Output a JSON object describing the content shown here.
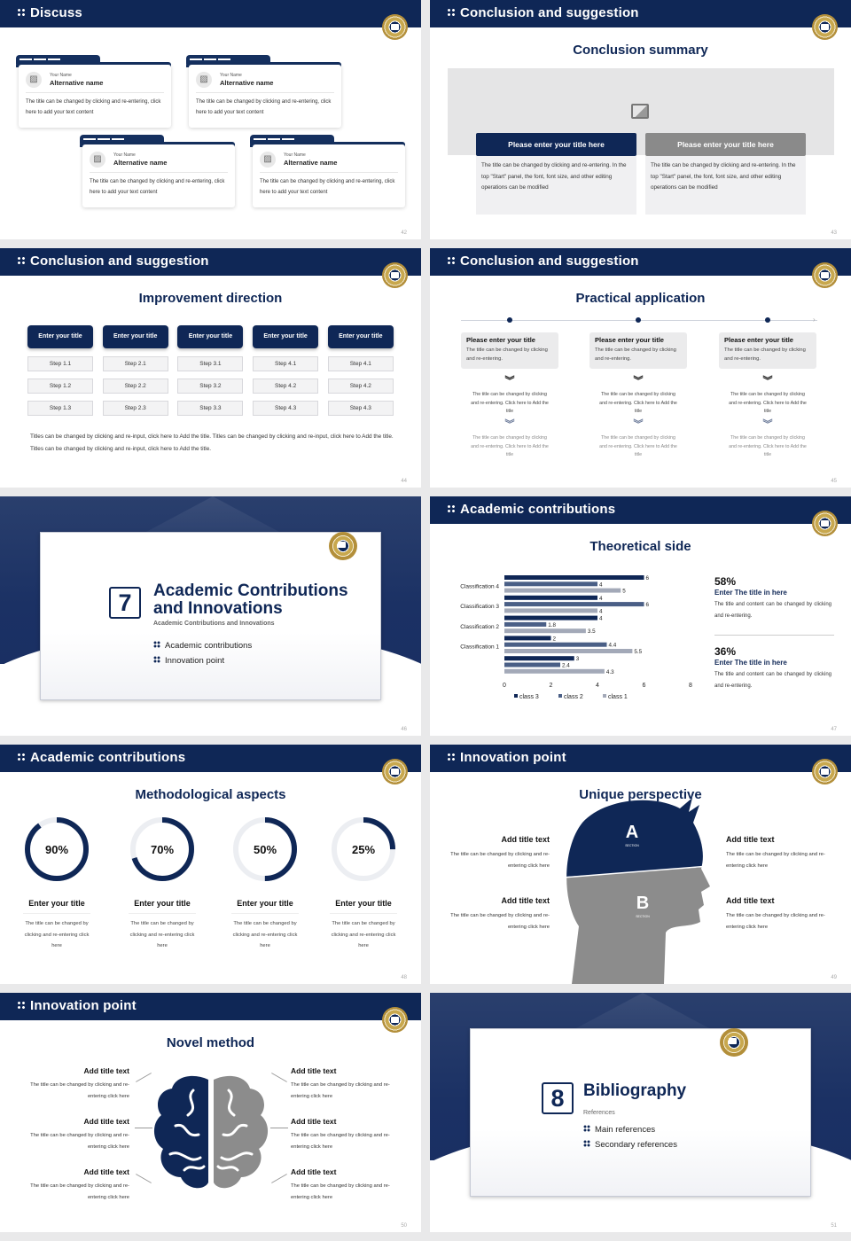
{
  "colors": {
    "navy": "#0f2756",
    "gray": "#8a8a8a",
    "light": "#f0f0f2"
  },
  "s42": {
    "title": "Discuss",
    "page": "42",
    "cards": [
      {
        "label": "Your Name",
        "name": "Alternative name",
        "text": "The title can be changed by clicking and re-entering, click here to add your text content"
      },
      {
        "label": "Your Name",
        "name": "Alternative name",
        "text": "The title can be changed by clicking and re-entering, click here to add your text content"
      },
      {
        "label": "Your Name",
        "name": "Alternative name",
        "text": "The title can be changed by clicking and re-entering, click here to add your text content"
      },
      {
        "label": "Your Name",
        "name": "Alternative name",
        "text": "The title can be changed by clicking and re-entering, click here to add your text content"
      }
    ]
  },
  "s43": {
    "title": "Conclusion and suggestion",
    "heading": "Conclusion summary",
    "page": "43",
    "icon": "image-add-icon",
    "panels": [
      {
        "title": "Please enter your title here",
        "text": "The title can be changed by clicking and re-entering. In the top \"Start\" panel, the font, font size, and other editing operations can be modified"
      },
      {
        "title": "Please enter your title here",
        "text": "The title can be changed by clicking and re-entering. In the top \"Start\" panel, the font, font size, and other editing operations can be modified"
      }
    ]
  },
  "s44": {
    "title": "Conclusion and suggestion",
    "heading": "Improvement direction",
    "page": "44",
    "columns": [
      {
        "title": "Enter your title",
        "steps": [
          "Step 1.1",
          "Step 1.2",
          "Step 1.3"
        ]
      },
      {
        "title": "Enter your title",
        "steps": [
          "Step 2.1",
          "Step 2.2",
          "Step 2.3"
        ]
      },
      {
        "title": "Enter your title",
        "steps": [
          "Step 3.1",
          "Step 3.2",
          "Step 3.3"
        ]
      },
      {
        "title": "Enter your title",
        "steps": [
          "Step 4.1",
          "Step 4.2",
          "Step 4.3"
        ]
      },
      {
        "title": "Enter your title",
        "steps": [
          "Step 4.1",
          "Step 4.2",
          "Step 4.3"
        ]
      }
    ],
    "text": "Titles can be changed by clicking and re-input, click here to Add the title. Titles can be changed by clicking and re-input, click here to Add the title. Titles can be changed by clicking and re-input, click here to Add the title."
  },
  "s45": {
    "title": "Conclusion and suggestion",
    "heading": "Practical application",
    "page": "45",
    "items": [
      {
        "title": "Please enter your title",
        "desc": "The title can be changed by clicking and re-entering.",
        "step1": "The title can be changed by clicking and re-entering. Click here to Add the title",
        "step2": "The title can be changed by clicking and re-entering. Click here to Add the title"
      },
      {
        "title": "Please enter your title",
        "desc": "The title can be changed by clicking and re-entering.",
        "step1": "The title can be changed by clicking and re-entering. Click here to Add the title",
        "step2": "The title can be changed by clicking and re-entering. Click here to Add the title"
      },
      {
        "title": "Please enter your title",
        "desc": "The title can be changed by clicking and re-entering.",
        "step1": "The title can be changed by clicking and re-entering. Click here to Add the title",
        "step2": "The title can be changed by clicking and re-entering. Click here to Add the title"
      }
    ]
  },
  "s46": {
    "number": "7",
    "title": "Academic Contributions and Innovations",
    "subtitle": "Academic Contributions and Innovations",
    "items": [
      "Academic contributions",
      "Innovation point"
    ],
    "page": "46"
  },
  "s47": {
    "title": "Academic contributions",
    "heading": "Theoretical side",
    "page": "47",
    "stats": [
      {
        "value": "58%",
        "title": "Enter The title in here",
        "text": "The title and content can be changed by clicking and re-entering."
      },
      {
        "value": "36%",
        "title": "Enter The title in here",
        "text": "The title and content can be changed by clicking and re-entering."
      }
    ]
  },
  "chart_data": {
    "type": "bar",
    "orientation": "horizontal",
    "categories": [
      "Classification 4",
      "Classification 3",
      "Classification 2",
      "Classification 1",
      ""
    ],
    "series": [
      {
        "name": "class 3",
        "color": "#0f2756",
        "values": [
          6,
          4,
          4,
          2,
          3
        ]
      },
      {
        "name": "class 2",
        "color": "#4a5f86",
        "values": [
          4,
          6,
          1.8,
          4.4,
          2.4
        ]
      },
      {
        "name": "class 1",
        "color": "#a3a9b8",
        "values": [
          5,
          4,
          3.5,
          5.5,
          4.3
        ]
      }
    ],
    "xlim": [
      0,
      8
    ],
    "xticks": [
      "0",
      "2",
      "4",
      "6",
      "8"
    ],
    "legend": "bottom",
    "grid": false
  },
  "s48": {
    "title": "Academic contributions",
    "heading": "Methodological aspects",
    "page": "48",
    "items": [
      {
        "percent": 90,
        "label": "90%",
        "title": "Enter your title",
        "text": "The title can be changed by clicking and re-entering click here"
      },
      {
        "percent": 70,
        "label": "70%",
        "title": "Enter your title",
        "text": "The title can be changed by clicking and re-entering click here"
      },
      {
        "percent": 50,
        "label": "50%",
        "title": "Enter your title",
        "text": "The title can be changed by clicking and re-entering click here"
      },
      {
        "percent": 25,
        "label": "25%",
        "title": "Enter your title",
        "text": "The title can be changed by clicking and re-entering click here"
      }
    ]
  },
  "s49": {
    "title": "Innovation point",
    "heading": "Unique perspective",
    "page": "49",
    "a": "A",
    "b": "B",
    "section": "SECTION",
    "left": [
      {
        "title": "Add title text",
        "text": "The title can be changed by clicking and re-entering click here"
      },
      {
        "title": "Add title text",
        "text": "The title can be changed by clicking and re-entering click here"
      }
    ],
    "right": [
      {
        "title": "Add title text",
        "text": "The title can be changed by clicking and re-entering click here"
      },
      {
        "title": "Add title text",
        "text": "The title can be changed by clicking and re-entering click here"
      }
    ]
  },
  "s50": {
    "title": "Innovation point",
    "heading": "Novel method",
    "page": "50",
    "left": [
      {
        "title": "Add title text",
        "text": "The title can be changed by clicking and re-entering click here"
      },
      {
        "title": "Add title text",
        "text": "The title can be changed by clicking and re-entering click here"
      },
      {
        "title": "Add title text",
        "text": "The title can be changed by clicking and re-entering click here"
      }
    ],
    "right": [
      {
        "title": "Add title text",
        "text": "The title can be changed by clicking and re-entering click here"
      },
      {
        "title": "Add title text",
        "text": "The title can be changed by clicking and re-entering click here"
      },
      {
        "title": "Add title text",
        "text": "The title can be changed by clicking and re-entering click here"
      }
    ]
  },
  "s51": {
    "number": "8",
    "title": "Bibliography",
    "subtitle": "References",
    "items": [
      "Main references",
      "Secondary references"
    ],
    "page": "51"
  }
}
